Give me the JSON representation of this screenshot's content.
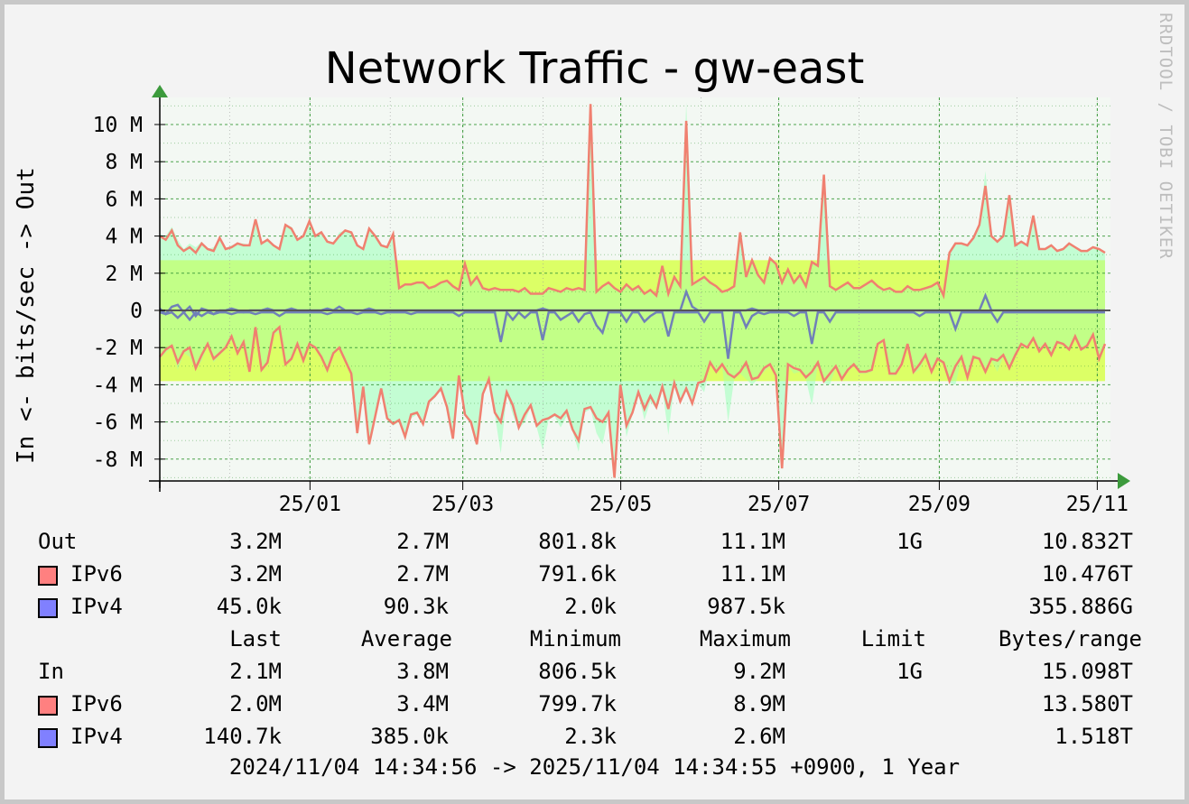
{
  "chart_data": {
    "type": "area",
    "title": "Network Traffic - gw-east",
    "ylabel": "In <- bits/sec -> Out",
    "watermark": "RRDTOOL / TOBI OETIKER",
    "ylim": [
      -9200000,
      11100000
    ],
    "y_ticks": [
      {
        "value": 10000000,
        "label": "10 M"
      },
      {
        "value": 8000000,
        "label": "8 M"
      },
      {
        "value": 6000000,
        "label": "6 M"
      },
      {
        "value": 4000000,
        "label": "4 M"
      },
      {
        "value": 2000000,
        "label": "2 M"
      },
      {
        "value": 0,
        "label": "0"
      },
      {
        "value": -2000000,
        "label": "-2 M"
      },
      {
        "value": -4000000,
        "label": "-4 M"
      },
      {
        "value": -6000000,
        "label": "-6 M"
      },
      {
        "value": -8000000,
        "label": "-8 M"
      }
    ],
    "x_range": [
      "2024/11/04",
      "2025/11/04"
    ],
    "x_ticks": [
      {
        "date": "2025/01/01",
        "label": "25/01"
      },
      {
        "date": "2025/03/01",
        "label": "25/03"
      },
      {
        "date": "2025/05/01",
        "label": "25/05"
      },
      {
        "date": "2025/07/01",
        "label": "25/07"
      },
      {
        "date": "2025/09/01",
        "label": "25/09"
      },
      {
        "date": "2025/11/01",
        "label": "25/11"
      }
    ],
    "bands": {
      "out_average": 2700000,
      "in_average": 3800000,
      "out_band_color": "#ffff66",
      "in_band_color": "#ffff66"
    },
    "colors": {
      "total_area": "#b3ffc8",
      "ipv6": "#f08070",
      "ipv4": "#7080b8",
      "swatch_ipv6": "#ff8080",
      "swatch_ipv4": "#8080ff",
      "background": "#f3f8f3",
      "grid": "#3c9a3c",
      "band_inner": "#bfff66"
    },
    "series": [
      {
        "name": "IPv6",
        "out": [
          4.0,
          3.8,
          4.3,
          3.5,
          3.2,
          3.4,
          3.1,
          3.6,
          3.3,
          3.2,
          3.9,
          3.3,
          3.4,
          3.6,
          3.5,
          3.5,
          4.9,
          3.6,
          3.8,
          3.5,
          3.3,
          4.6,
          4.4,
          3.8,
          4.0,
          4.8,
          4.0,
          4.2,
          3.7,
          3.6,
          4.0,
          4.3,
          4.2,
          3.5,
          3.3,
          4.4,
          4.0,
          3.5,
          3.4,
          4.1,
          1.2,
          1.4,
          1.4,
          1.5,
          1.5,
          1.2,
          1.3,
          1.5,
          1.6,
          1.3,
          1.1,
          2.5,
          1.4,
          1.8,
          1.2,
          1.1,
          1.2,
          1.1,
          1.1,
          1.1,
          1.0,
          1.2,
          0.9,
          0.9,
          0.9,
          1.2,
          1.1,
          1.0,
          1.2,
          1.1,
          1.2,
          1.1,
          11.1,
          1.0,
          1.3,
          1.5,
          1.2,
          1.0,
          1.4,
          1.1,
          1.3,
          0.9,
          1.1,
          0.8,
          2.4,
          0.9,
          1.8,
          1.3,
          10.2,
          1.4,
          1.6,
          1.8,
          1.5,
          1.3,
          1.0,
          1.1,
          1.3,
          4.2,
          1.8,
          2.7,
          1.9,
          1.5,
          2.8,
          2.5,
          1.5,
          2.2,
          1.5,
          1.9,
          1.3,
          2.6,
          2.4,
          7.3,
          1.3,
          1.1,
          1.3,
          1.5,
          1.2,
          1.2,
          1.4,
          1.6,
          1.3,
          1.1,
          1.2,
          1.0,
          1.0,
          1.3,
          1.1,
          1.1,
          1.2,
          1.3,
          1.5,
          0.8,
          3.1,
          3.6,
          3.6,
          3.5,
          3.9,
          4.6,
          6.7,
          4.0,
          3.7,
          4.0,
          6.2,
          3.5,
          3.7,
          3.5,
          5.1,
          3.3,
          3.3,
          3.5,
          3.2,
          3.3,
          3.6,
          3.4,
          3.2,
          3.2,
          3.4,
          3.3,
          3.1
        ],
        "in": [
          -2.5,
          -2.1,
          -1.9,
          -2.8,
          -2.2,
          -2.0,
          -3.1,
          -2.4,
          -1.8,
          -2.6,
          -2.3,
          -2.0,
          -1.4,
          -2.3,
          -1.7,
          -3.3,
          -0.9,
          -3.2,
          -2.8,
          -1.2,
          -0.9,
          -2.9,
          -2.6,
          -1.8,
          -2.7,
          -1.8,
          -2.0,
          -2.5,
          -3.2,
          -2.3,
          -2.0,
          -2.7,
          -3.4,
          -6.6,
          -4.1,
          -7.2,
          -5.7,
          -4.2,
          -5.8,
          -6.1,
          -5.9,
          -6.8,
          -5.6,
          -5.5,
          -6.1,
          -4.9,
          -4.6,
          -4.2,
          -5.2,
          -6.9,
          -3.5,
          -5.6,
          -6.0,
          -7.2,
          -4.5,
          -3.7,
          -5.5,
          -6.0,
          -4.4,
          -5.1,
          -6.3,
          -5.6,
          -5.1,
          -6.2,
          -5.9,
          -5.8,
          -5.6,
          -5.8,
          -5.4,
          -6.4,
          -7.0,
          -5.3,
          -5.2,
          -5.8,
          -6.0,
          -5.5,
          -9.0,
          -4.0,
          -6.2,
          -5.5,
          -4.4,
          -5.3,
          -4.6,
          -5.2,
          -4.1,
          -5.3,
          -3.9,
          -4.9,
          -4.2,
          -5.0,
          -3.9,
          -3.8,
          -2.8,
          -3.3,
          -2.9,
          -3.4,
          -3.6,
          -3.3,
          -2.8,
          -3.7,
          -3.6,
          -3.1,
          -2.9,
          -3.5,
          -8.5,
          -2.9,
          -3.1,
          -3.2,
          -3.6,
          -3.3,
          -2.8,
          -3.8,
          -3.4,
          -3.0,
          -3.7,
          -3.2,
          -2.9,
          -3.3,
          -3.3,
          -3.2,
          -1.8,
          -1.6,
          -3.4,
          -3.4,
          -2.9,
          -1.8,
          -3.3,
          -2.9,
          -2.4,
          -3.3,
          -2.6,
          -2.8,
          -3.8,
          -3.0,
          -2.5,
          -3.6,
          -2.5,
          -2.6,
          -3.3,
          -2.6,
          -2.7,
          -2.4,
          -3.1,
          -2.4,
          -1.8,
          -2.0,
          -1.5,
          -2.2,
          -1.8,
          -2.4,
          -1.7,
          -1.8,
          -2.1,
          -1.4,
          -2.1,
          -1.9,
          -1.3,
          -2.6,
          -1.8
        ]
      },
      {
        "name": "IPv4",
        "out": [
          0.1,
          -0.2,
          0.2,
          0.3,
          -0.1,
          0.2,
          -0.3,
          0.1,
          0.0,
          -0.2,
          0.0,
          0.0,
          0.1,
          0.0,
          -0.1,
          0.0,
          0.0,
          0.0,
          0.1,
          0.0,
          0.0,
          0.0,
          0.1,
          0.0,
          0.0,
          0.0,
          0.0,
          0.0,
          0.1,
          0.0,
          0.2,
          0.0,
          0.0,
          0.0,
          0.0,
          0.1,
          0.0,
          0.0,
          0.0,
          0.0,
          0.0,
          0.0,
          0.0,
          0.0,
          0.0,
          0.0,
          0.0,
          0.0,
          0.0,
          0.0,
          0.0,
          0.0,
          0.0,
          0.0,
          0.0,
          0.0,
          0.0,
          0.0,
          0.0,
          0.0,
          0.0,
          0.0,
          0.0,
          0.0,
          0.1,
          0.0,
          0.0,
          0.0,
          0.0,
          0.0,
          0.0,
          0.0,
          0.0,
          0.0,
          0.0,
          0.0,
          0.0,
          0.0,
          0.0,
          0.0,
          0.0,
          0.0,
          0.0,
          0.0,
          0.0,
          0.0,
          0.0,
          0.0,
          1.0,
          0.2,
          0.0,
          0.0,
          0.0,
          0.0,
          0.0,
          0.0,
          0.0,
          0.0,
          0.0,
          0.1,
          0.0,
          0.0,
          0.0,
          0.0,
          0.0,
          0.0,
          0.0,
          0.0,
          0.0,
          0.0,
          0.0,
          0.0,
          0.0,
          0.0,
          0.0,
          0.0,
          0.0,
          0.0,
          0.0,
          0.0,
          0.0,
          0.0,
          0.0,
          0.0,
          0.0,
          0.0,
          0.0,
          0.0,
          0.0,
          0.0,
          0.0,
          0.0,
          0.0,
          0.0,
          0.0,
          0.0,
          0.0,
          0.0,
          0.8,
          0.0,
          0.0,
          0.0,
          0.0,
          0.0,
          0.0,
          0.0,
          0.0,
          0.0,
          0.0,
          0.0,
          0.0,
          0.0,
          0.0,
          0.0,
          0.0,
          0.0,
          0.0,
          0.0,
          0.0,
          0.0
        ],
        "in": [
          -0.1,
          -0.2,
          -0.1,
          -0.4,
          -0.1,
          -0.5,
          -0.1,
          -0.3,
          -0.1,
          -0.2,
          -0.1,
          -0.1,
          -0.2,
          -0.1,
          -0.1,
          -0.1,
          -0.2,
          -0.1,
          -0.1,
          -0.1,
          -0.3,
          -0.1,
          -0.1,
          -0.1,
          -0.1,
          -0.1,
          -0.1,
          -0.1,
          -0.2,
          -0.1,
          -0.1,
          -0.1,
          -0.1,
          -0.2,
          -0.1,
          -0.1,
          -0.1,
          -0.2,
          -0.1,
          -0.1,
          -0.1,
          -0.1,
          -0.2,
          -0.1,
          -0.1,
          -0.1,
          -0.1,
          -0.1,
          -0.1,
          -0.1,
          -0.3,
          -0.1,
          -0.1,
          -0.1,
          -0.1,
          -0.1,
          -0.1,
          -1.7,
          -0.1,
          -0.5,
          -0.1,
          -0.4,
          -0.1,
          -0.1,
          -1.6,
          -0.1,
          -0.1,
          -0.5,
          -0.3,
          -0.1,
          -0.6,
          -0.2,
          -0.1,
          -0.8,
          -1.2,
          -0.1,
          -0.1,
          -0.1,
          -0.6,
          -0.1,
          -0.1,
          -0.6,
          -0.3,
          -0.1,
          -0.1,
          -1.4,
          -0.1,
          -0.1,
          -0.1,
          -0.1,
          -0.1,
          -0.6,
          -0.1,
          -0.1,
          -0.1,
          -2.6,
          -0.1,
          -0.1,
          -0.9,
          -0.3,
          -0.1,
          -0.2,
          -0.1,
          -0.1,
          -0.1,
          -0.1,
          -0.3,
          -0.1,
          -0.1,
          -1.8,
          -0.1,
          -0.1,
          -0.6,
          -0.1,
          -0.1,
          -0.1,
          -0.1,
          -0.1,
          -0.1,
          -0.1,
          -0.1,
          -0.1,
          -0.1,
          -0.1,
          -0.1,
          -0.1,
          -0.1,
          -0.3,
          -0.1,
          -0.1,
          -0.1,
          -0.1,
          -0.1,
          -1.0,
          -0.1,
          -0.1,
          -0.1,
          -0.1,
          -0.1,
          -0.1,
          -0.6,
          -0.1,
          -0.1,
          -0.1,
          -0.1,
          -0.1,
          -0.1,
          -0.1,
          -0.1,
          -0.1,
          -0.1,
          -0.1,
          -0.1,
          -0.1,
          -0.1,
          -0.1,
          -0.1,
          -0.1,
          -0.1,
          -0.1,
          -0.1
        ]
      }
    ],
    "value_unit": "M bits/sec"
  },
  "legend": {
    "headers": [
      "Last",
      "Average",
      "Minimum",
      "Maximum",
      "Limit",
      "Bytes/range"
    ],
    "out": {
      "label": "Out",
      "total": [
        "3.2M",
        "2.7M",
        "801.8k",
        "11.1M",
        "1G",
        "10.832T"
      ],
      "rows": [
        {
          "name": "IPv6",
          "values": [
            "3.2M",
            "2.7M",
            "791.6k",
            "11.1M",
            "",
            "10.476T"
          ]
        },
        {
          "name": "IPv4",
          "values": [
            "45.0k",
            "90.3k",
            "2.0k",
            "987.5k",
            "",
            "355.886G"
          ]
        }
      ]
    },
    "in": {
      "label": "In",
      "total": [
        "2.1M",
        "3.8M",
        "806.5k",
        "9.2M",
        "1G",
        "15.098T"
      ],
      "rows": [
        {
          "name": "IPv6",
          "values": [
            "2.0M",
            "3.4M",
            "799.7k",
            "8.9M",
            "",
            "13.580T"
          ]
        },
        {
          "name": "IPv4",
          "values": [
            "140.7k",
            "385.0k",
            "2.3k",
            "2.6M",
            "",
            "1.518T"
          ]
        }
      ]
    }
  },
  "time_range": "2024/11/04 14:34:56 -> 2025/11/04 14:34:55 +0900, 1 Year"
}
